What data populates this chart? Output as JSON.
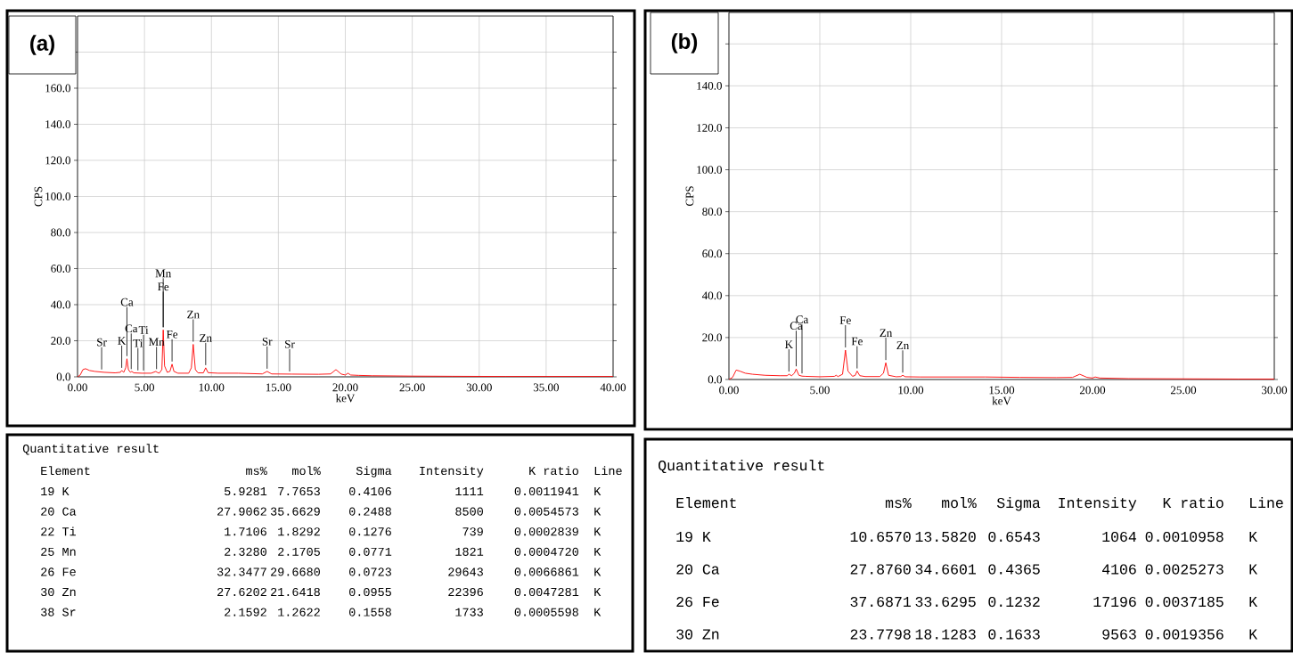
{
  "chart_data": [
    {
      "type": "line",
      "title": "(a)",
      "xlabel": "keV",
      "ylabel": "CPS",
      "xlim": [
        0,
        40
      ],
      "ylim": [
        0,
        200
      ],
      "xticks": [
        {
          "value": 0,
          "label": "0.00"
        },
        {
          "value": 5,
          "label": "5.00"
        },
        {
          "value": 10,
          "label": "10.00"
        },
        {
          "value": 15,
          "label": "15.00"
        },
        {
          "value": 20,
          "label": "20.00"
        },
        {
          "value": 25,
          "label": "25.00"
        },
        {
          "value": 30,
          "label": "30.00"
        },
        {
          "value": 35,
          "label": "35.00"
        },
        {
          "value": 40,
          "label": "40.00"
        }
      ],
      "yticks": [
        {
          "value": 0,
          "label": "0.0"
        },
        {
          "value": 20,
          "label": "20.0"
        },
        {
          "value": 40,
          "label": "40.0"
        },
        {
          "value": 60,
          "label": "60.0"
        },
        {
          "value": 80,
          "label": "80.0"
        },
        {
          "value": 100,
          "label": "100.0"
        },
        {
          "value": 120,
          "label": "120.0"
        },
        {
          "value": 140,
          "label": "140.0"
        },
        {
          "value": 160,
          "label": "160.0"
        },
        {
          "value": 180,
          "label": null
        }
      ],
      "grid": true,
      "x": [
        0,
        0.2,
        0.4,
        0.6,
        0.9,
        1.3,
        2.0,
        2.8,
        3.2,
        3.3,
        3.45,
        3.6,
        3.69,
        3.8,
        3.95,
        4.05,
        4.2,
        4.8,
        5.5,
        5.85,
        5.95,
        6.1,
        6.3,
        6.4,
        6.5,
        6.7,
        6.9,
        7.06,
        7.2,
        7.5,
        8.3,
        8.5,
        8.64,
        8.8,
        9.0,
        9.4,
        9.57,
        9.75,
        10.5,
        12,
        13.8,
        14.16,
        14.5,
        16,
        18,
        18.9,
        19.3,
        19.7,
        20.0,
        20.2,
        20.4,
        21,
        22,
        25,
        28,
        32,
        36,
        40
      ],
      "series": [
        {
          "color": "#ff0000",
          "values": [
            0,
            1,
            4,
            4.5,
            3.5,
            3,
            2.5,
            2.2,
            2.5,
            3.5,
            2.5,
            5,
            10,
            4,
            2.5,
            3,
            2.2,
            2,
            2,
            3,
            2.5,
            2,
            4,
            26,
            6,
            2.5,
            3,
            7,
            3,
            2,
            2,
            5,
            18,
            4,
            2.2,
            2.2,
            5,
            2.3,
            2,
            2,
            1.6,
            3,
            1.6,
            1.5,
            1.4,
            1.6,
            4,
            1.5,
            1,
            2,
            1,
            0.8,
            0.6,
            0.4,
            0.3,
            0.2,
            0.2,
            0.2
          ]
        }
      ],
      "annotations": [
        {
          "text": "Sr",
          "x": 1.8,
          "y": 2.6
        },
        {
          "text": "K",
          "x": 3.3,
          "y": 3.5
        },
        {
          "text": "Ti",
          "x": 4.51,
          "y": 2.1
        },
        {
          "text": "Ca",
          "x": 4.01,
          "y": 2.8
        },
        {
          "text": "Ti",
          "x": 4.93,
          "y": 2
        },
        {
          "text": "Ca",
          "x": 3.69,
          "y": 10
        },
        {
          "text": "Fe",
          "x": 7.06,
          "y": 7
        },
        {
          "text": "Mn",
          "x": 5.9,
          "y": 2.8
        },
        {
          "text": "Fe",
          "x": 6.4,
          "y": 26
        },
        {
          "text": "Mn",
          "x": 6.4,
          "y": 26
        },
        {
          "text": "Zn",
          "x": 8.64,
          "y": 18
        },
        {
          "text": "Zn",
          "x": 9.57,
          "y": 5
        },
        {
          "text": "Sr",
          "x": 14.16,
          "y": 3
        },
        {
          "text": "Sr",
          "x": 15.84,
          "y": 1.5
        }
      ]
    },
    {
      "type": "line",
      "title": "(b)",
      "xlabel": "keV",
      "ylabel": "CPS",
      "xlim": [
        0,
        30
      ],
      "ylim": [
        0,
        175
      ],
      "xticks": [
        {
          "value": 0,
          "label": "0.00"
        },
        {
          "value": 5,
          "label": "5.00"
        },
        {
          "value": 10,
          "label": "10.00"
        },
        {
          "value": 15,
          "label": "15.00"
        },
        {
          "value": 20,
          "label": "20.00"
        },
        {
          "value": 25,
          "label": "25.00"
        },
        {
          "value": 30,
          "label": "30.00"
        }
      ],
      "yticks": [
        {
          "value": 0,
          "label": "0.0"
        },
        {
          "value": 20,
          "label": "20.0"
        },
        {
          "value": 40,
          "label": "40.0"
        },
        {
          "value": 60,
          "label": "60.0"
        },
        {
          "value": 80,
          "label": "80.0"
        },
        {
          "value": 100,
          "label": "100.0"
        },
        {
          "value": 120,
          "label": "120.0"
        },
        {
          "value": 140,
          "label": "140.0"
        },
        {
          "value": 160,
          "label": null
        }
      ],
      "grid": true,
      "x": [
        0,
        0.2,
        0.4,
        0.6,
        0.9,
        1.3,
        2.0,
        2.8,
        3.2,
        3.3,
        3.45,
        3.6,
        3.7,
        3.85,
        4.02,
        4.2,
        5.0,
        5.8,
        5.9,
        6.0,
        6.25,
        6.41,
        6.55,
        6.8,
        6.95,
        7.05,
        7.2,
        7.5,
        8.3,
        8.5,
        8.63,
        8.78,
        9.2,
        9.45,
        9.56,
        9.7,
        10.5,
        12,
        14.1,
        16,
        18,
        18.9,
        19.3,
        19.7,
        20.0,
        20.15,
        20.4,
        22,
        25,
        28,
        30
      ],
      "series": [
        {
          "color": "#ff0000",
          "values": [
            0,
            1,
            4.5,
            4,
            3,
            2.5,
            2,
            1.8,
            1.8,
            2.5,
            1.8,
            3,
            5,
            2,
            1.6,
            1.5,
            1.3,
            1.5,
            2,
            1.4,
            2.5,
            14,
            4,
            1.5,
            2,
            4,
            1.8,
            1.4,
            1.4,
            3,
            8,
            2,
            1.3,
            1.4,
            2,
            1.3,
            1.2,
            1.2,
            1.2,
            1,
            0.9,
            1,
            2.5,
            1,
            0.7,
            1.2,
            0.7,
            0.4,
            0.3,
            0.2,
            0.2
          ]
        }
      ],
      "annotations": [
        {
          "text": "K",
          "x": 3.3,
          "y": 2.5
        },
        {
          "text": "Ca",
          "x": 3.7,
          "y": 5
        },
        {
          "text": "Ca",
          "x": 4.02,
          "y": 1.6
        },
        {
          "text": "Fe",
          "x": 7.05,
          "y": 4
        },
        {
          "text": "Fe",
          "x": 6.41,
          "y": 14
        },
        {
          "text": "Zn",
          "x": 8.63,
          "y": 8
        },
        {
          "text": "Zn",
          "x": 9.56,
          "y": 2
        }
      ]
    },
    {
      "type": "other",
      "title": "Quantitative result",
      "ylabel": "Element",
      "categories": [
        "ms%",
        "mol%",
        "Sigma",
        "Intensity",
        "K ratio",
        "Line"
      ],
      "y_categories": [
        "19 K",
        "20 Ca",
        "22 Ti",
        "25 Mn",
        "26 Fe",
        "30 Zn",
        "38 Sr"
      ],
      "cell_labels": [
        [
          "5.9281",
          "7.7653",
          "0.4106",
          "1111",
          "0.0011941",
          "K"
        ],
        [
          "27.9062",
          "35.6629",
          "0.2488",
          "8500",
          "0.0054573",
          "K"
        ],
        [
          "1.7106",
          "1.8292",
          "0.1276",
          "739",
          "0.0002839",
          "K"
        ],
        [
          "2.3280",
          "2.1705",
          "0.0771",
          "1821",
          "0.0004720",
          "K"
        ],
        [
          "32.3477",
          "29.6680",
          "0.0723",
          "29643",
          "0.0066861",
          "K"
        ],
        [
          "27.6202",
          "21.6418",
          "0.0955",
          "22396",
          "0.0047281",
          "K"
        ],
        [
          "2.1592",
          "1.2622",
          "0.1558",
          "1733",
          "0.0005598",
          "K"
        ]
      ]
    },
    {
      "type": "other",
      "title": "Quantitative result",
      "ylabel": "Element",
      "categories": [
        "ms%",
        "mol%",
        "Sigma",
        "Intensity",
        "K ratio",
        "Line"
      ],
      "y_categories": [
        "19 K",
        "20 Ca",
        "26 Fe",
        "30 Zn"
      ],
      "cell_labels": [
        [
          "10.6570",
          "13.5820",
          "0.6543",
          "1064",
          "0.0010958",
          "K"
        ],
        [
          "27.8760",
          "34.6601",
          "0.4365",
          "4106",
          "0.0025273",
          "K"
        ],
        [
          "37.6871",
          "33.6295",
          "0.1232",
          "17196",
          "0.0037185",
          "K"
        ],
        [
          "23.7798",
          "18.1283",
          "0.1633",
          "9563",
          "0.0019356",
          "K"
        ]
      ]
    }
  ]
}
